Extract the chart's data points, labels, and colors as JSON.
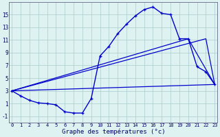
{
  "title": "Graphe des températures (°c)",
  "background_color": "#dff2f2",
  "grid_color": "#aacccc",
  "line_color": "#0000cc",
  "x_hours": [
    0,
    1,
    2,
    3,
    4,
    5,
    6,
    7,
    8,
    9,
    10,
    11,
    12,
    13,
    14,
    15,
    16,
    17,
    18,
    19,
    20,
    21,
    22,
    23
  ],
  "curve_main": [
    3.0,
    2.2,
    1.5,
    1.1,
    1.0,
    0.8,
    -0.3,
    -0.5,
    -0.5,
    1.8,
    8.5,
    10.0,
    12.0,
    13.5,
    14.8,
    15.8,
    16.2,
    15.2,
    15.0,
    11.2,
    11.2,
    6.8,
    6.0,
    4.0
  ],
  "trend1_x": [
    0,
    22,
    23
  ],
  "trend1_y": [
    3.0,
    11.2,
    4.0
  ],
  "trend2_x": [
    0,
    20,
    23
  ],
  "trend2_y": [
    3.0,
    11.2,
    4.0
  ],
  "trend3_x": [
    0,
    23
  ],
  "trend3_y": [
    3.0,
    4.0
  ],
  "ylim": [
    -2,
    17
  ],
  "yticks": [
    -1,
    1,
    3,
    5,
    7,
    9,
    11,
    13,
    15
  ],
  "xlim": [
    0,
    23
  ]
}
